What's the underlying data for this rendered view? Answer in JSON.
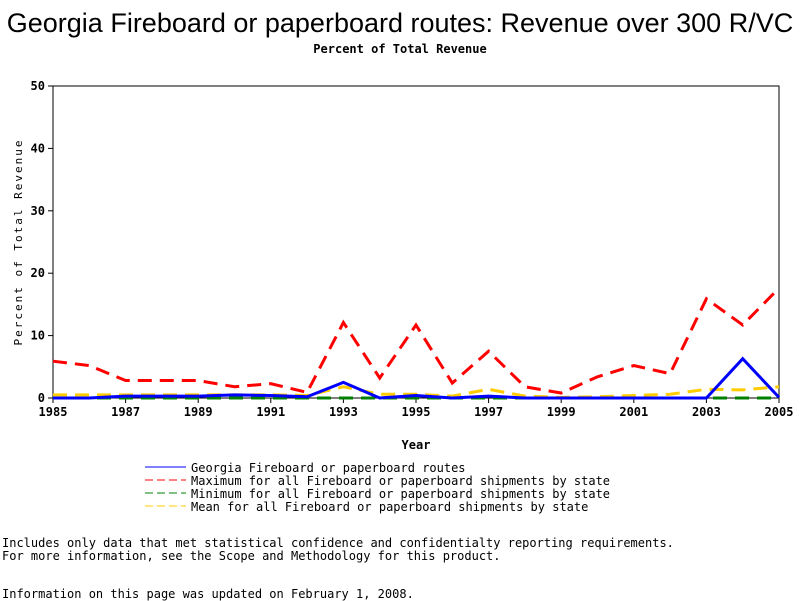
{
  "chart_data": {
    "type": "line",
    "title": "Georgia Fireboard or paperboard routes: Revenue over 300 R/VC",
    "subtitle": "Percent of Total Revenue",
    "xlabel": "Year",
    "ylabel": "Percent of Total Revenue",
    "xlim": [
      1985,
      2005
    ],
    "ylim": [
      0,
      50
    ],
    "yticks": [
      0,
      10,
      20,
      30,
      40,
      50
    ],
    "xticks": [
      1985,
      1987,
      1989,
      1991,
      1993,
      1995,
      1997,
      1999,
      2001,
      2003,
      2005
    ],
    "x": [
      1985,
      1986,
      1987,
      1988,
      1989,
      1990,
      1991,
      1992,
      1993,
      1994,
      1995,
      1996,
      1997,
      1998,
      1999,
      2000,
      2001,
      2002,
      2003,
      2004,
      2005
    ],
    "series": [
      {
        "name": "Georgia Fireboard or paperboard routes",
        "color": "#0000ff",
        "dash": "solid",
        "values": [
          0,
          0,
          0.3,
          0.3,
          0.3,
          0.5,
          0.4,
          0.2,
          2.5,
          0,
          0.4,
          0,
          0.3,
          0,
          0,
          0,
          0,
          0,
          0,
          6.3,
          0.1
        ]
      },
      {
        "name": "Maximum for all Fireboard or paperboard shipments by state",
        "color": "#ff0000",
        "dash": "dashed",
        "values": [
          5.9,
          5.2,
          2.8,
          2.8,
          2.8,
          1.8,
          2.3,
          0.9,
          12.1,
          3.2,
          11.7,
          2.4,
          7.5,
          1.8,
          0.8,
          3.4,
          5.2,
          3.9,
          15.9,
          11.7,
          17.6
        ]
      },
      {
        "name": "Minimum for all Fireboard or paperboard shipments by state",
        "color": "#008000",
        "dash": "dashed",
        "values": [
          0,
          0,
          0,
          0,
          0,
          0,
          0,
          0,
          0,
          0,
          0,
          0,
          0,
          0,
          0,
          0,
          0,
          0,
          0,
          0,
          0
        ]
      },
      {
        "name": "Mean for all Fireboard or paperboard shipments by state",
        "color": "#ffcc00",
        "dash": "dashed",
        "values": [
          0.5,
          0.5,
          0.5,
          0.5,
          0.5,
          0.5,
          0.5,
          0.4,
          1.8,
          0.6,
          0.6,
          0.3,
          1.4,
          0.3,
          0.1,
          0.2,
          0.4,
          0.6,
          1.4,
          1.3,
          1.8
        ]
      }
    ]
  },
  "notes": [
    "Includes only data that met statistical confidence and confidentialty reporting requirements.",
    "For more information, see the Scope and Methodology for this product."
  ],
  "updated": "Information on this page was updated on February 1, 2008."
}
